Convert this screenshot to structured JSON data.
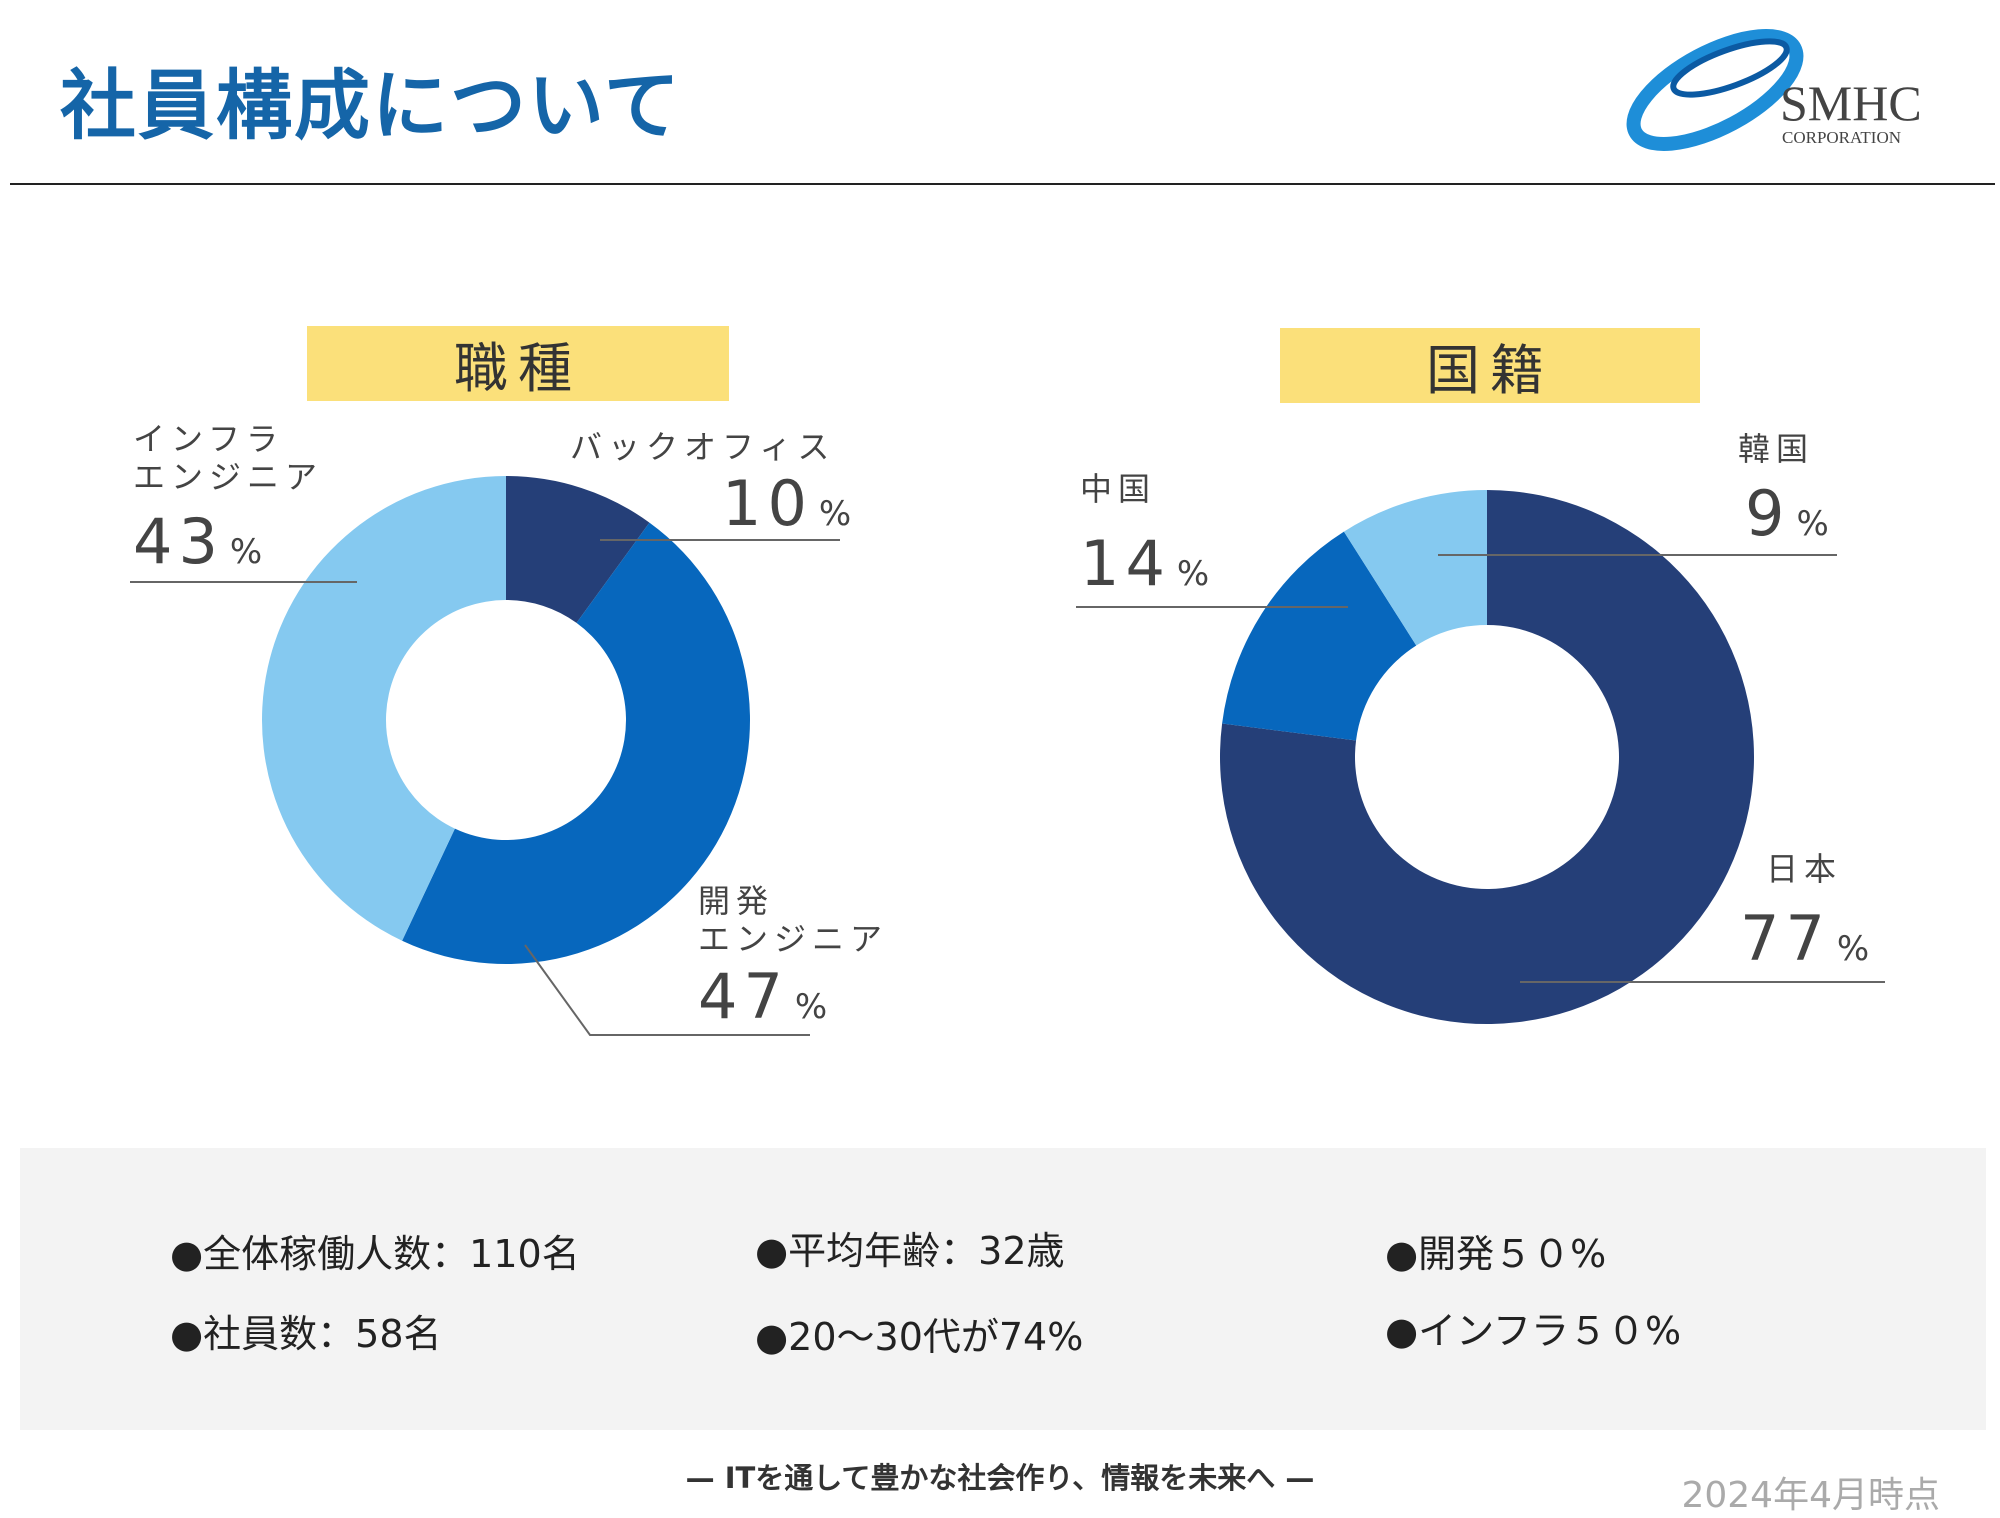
{
  "header": {
    "title": "社員構成について"
  },
  "logo": {
    "name": "SMHC",
    "sub": "CORPORATION"
  },
  "chart_data": [
    {
      "type": "pie",
      "title": "職種",
      "hole": true,
      "categories": [
        "バックオフィス",
        "開発エンジニア",
        "インフラエンジニア"
      ],
      "values": [
        10,
        47,
        43
      ],
      "labels": [
        {
          "line1": "バックオフィス",
          "line2": "",
          "value": "10",
          "unit": "%"
        },
        {
          "line1": "開発",
          "line2": "エンジニア",
          "value": "47",
          "unit": "%"
        },
        {
          "line1": "インフラ",
          "line2": "エンジニア",
          "value": "43",
          "unit": "%"
        }
      ],
      "colors": [
        "#253f78",
        "#0767bd",
        "#85c9f0"
      ]
    },
    {
      "type": "pie",
      "title": "国籍",
      "hole": true,
      "categories": [
        "日本",
        "中国",
        "韓国"
      ],
      "values": [
        77,
        14,
        9
      ],
      "labels": [
        {
          "line1": "日本",
          "value": "77",
          "unit": "%"
        },
        {
          "line1": "中国",
          "value": "14",
          "unit": "%"
        },
        {
          "line1": "韓国",
          "value": "9",
          "unit": "%"
        }
      ],
      "colors": [
        "#253f78",
        "#0767bd",
        "#85c9f0"
      ]
    }
  ],
  "stats": {
    "total_workers": "●全体稼働人数：110名",
    "employees": "●社員数：58名",
    "avg_age": "●平均年齢：32歳",
    "age_range": "●20～30代が74%",
    "dev": "●開発５０%",
    "infra": "●インフラ５０%"
  },
  "footer": {
    "slogan": "—  ITを通して豊かな社会作り、情報を未来へ  —",
    "as_of": "2024年4月時点"
  }
}
